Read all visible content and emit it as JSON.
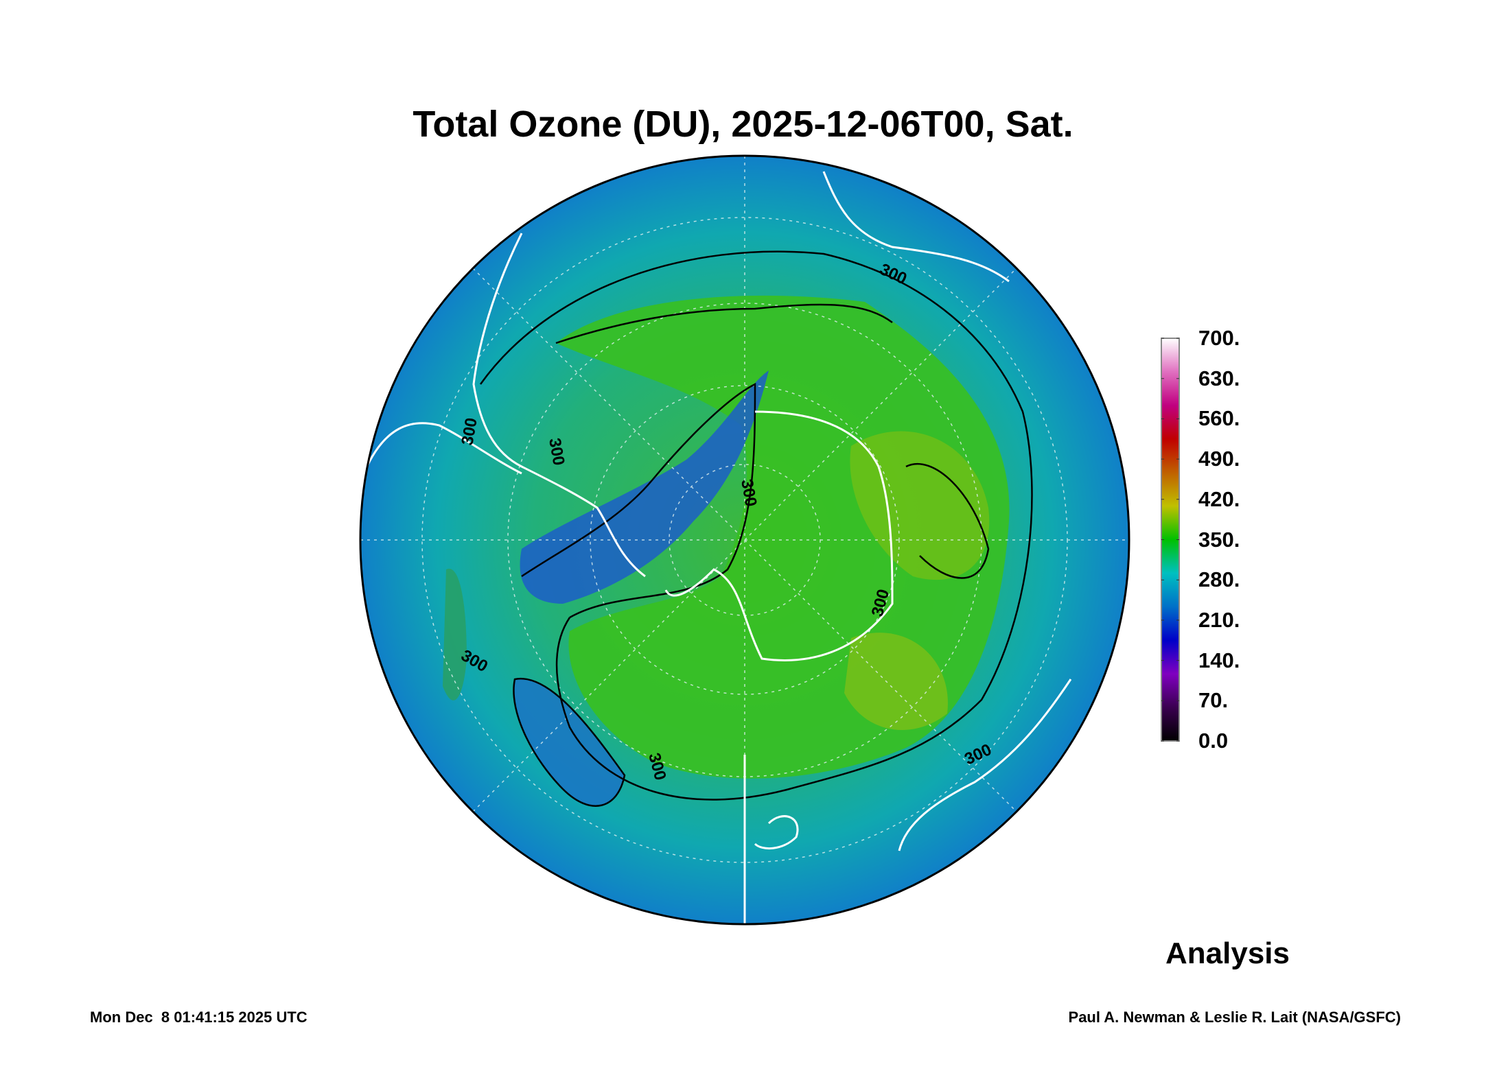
{
  "chart_data": {
    "type": "heatmap",
    "title": "Total Ozone (DU), 2025-12-06T00, Sat.",
    "projection": "south polar stereographic",
    "variable": "Total Ozone",
    "units": "DU",
    "colorbar": {
      "ticks": [
        "0.0",
        "70.",
        "140.",
        "210.",
        "280.",
        "350.",
        "420.",
        "490.",
        "560.",
        "630.",
        "700."
      ],
      "range": [
        0,
        700
      ],
      "colors": [
        "#000000",
        "#3a0050",
        "#8000c0",
        "#0000c8",
        "#0070c8",
        "#00c0c0",
        "#00c000",
        "#c0c000",
        "#c06000",
        "#c00000",
        "#c00080",
        "#e070c0",
        "#ffffff"
      ]
    },
    "contour_levels": [
      300
    ],
    "contour_labels": [
      "300",
      "300",
      "300",
      "300",
      "300",
      "300",
      "300",
      "300"
    ],
    "annotation": "Analysis"
  },
  "footer": {
    "timestamp": "Mon Dec  8 01:41:15 2025 UTC",
    "credit": "Paul A. Newman & Leslie R. Lait (NASA/GSFC)"
  }
}
